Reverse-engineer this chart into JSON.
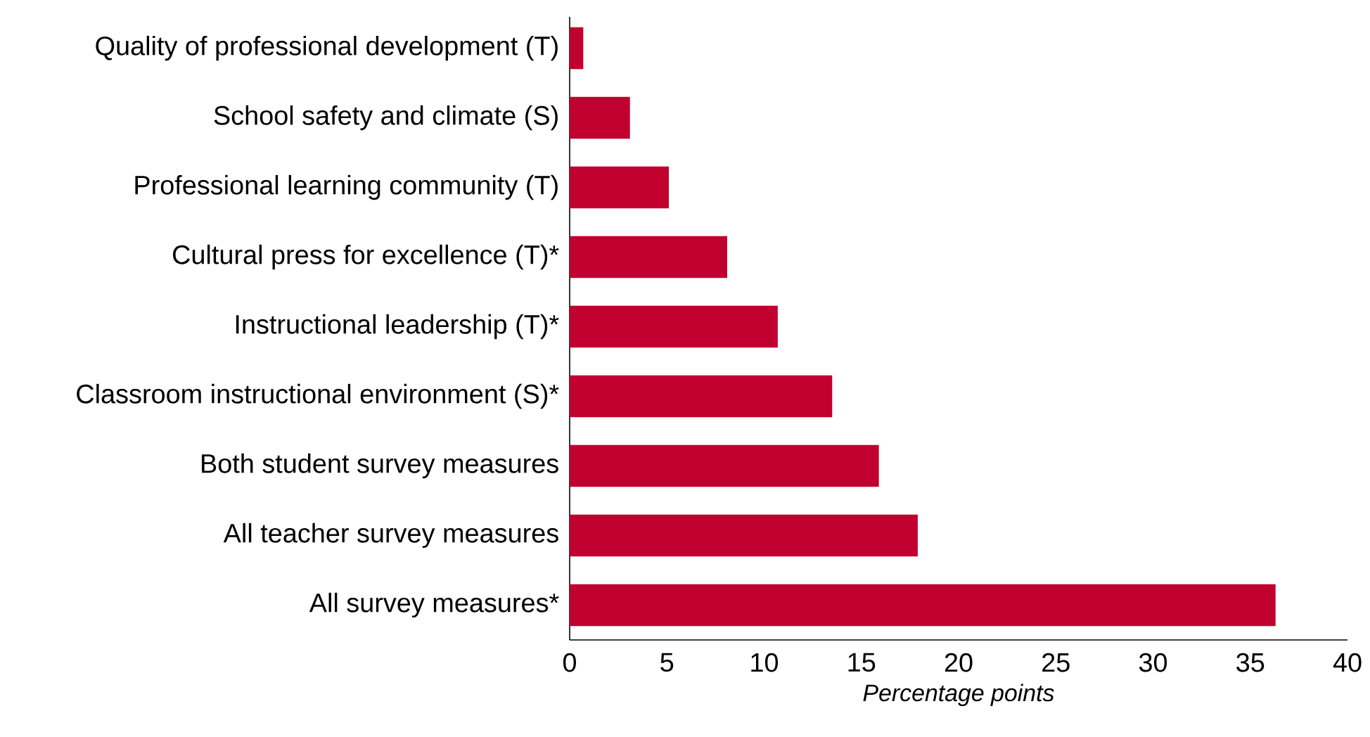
{
  "chart_data": {
    "type": "bar",
    "orientation": "horizontal",
    "xlabel": "Percentage points",
    "categories": [
      "Quality of professional development (T)",
      "School safety and climate (S)",
      "Professional learning community (T)",
      "Cultural press for excellence (T)*",
      "Instructional leadership (T)*",
      "Classroom instructional environment (S)*",
      "Both student survey measures",
      "All teacher survey measures",
      "All survey measures*"
    ],
    "values": [
      0.7,
      3.1,
      5.1,
      8.1,
      10.7,
      13.5,
      15.9,
      17.9,
      36.3
    ],
    "color": "#c0002f",
    "xlim": [
      0,
      40
    ],
    "xticks": [
      0,
      5,
      10,
      15,
      20,
      25,
      30,
      35,
      40
    ]
  }
}
